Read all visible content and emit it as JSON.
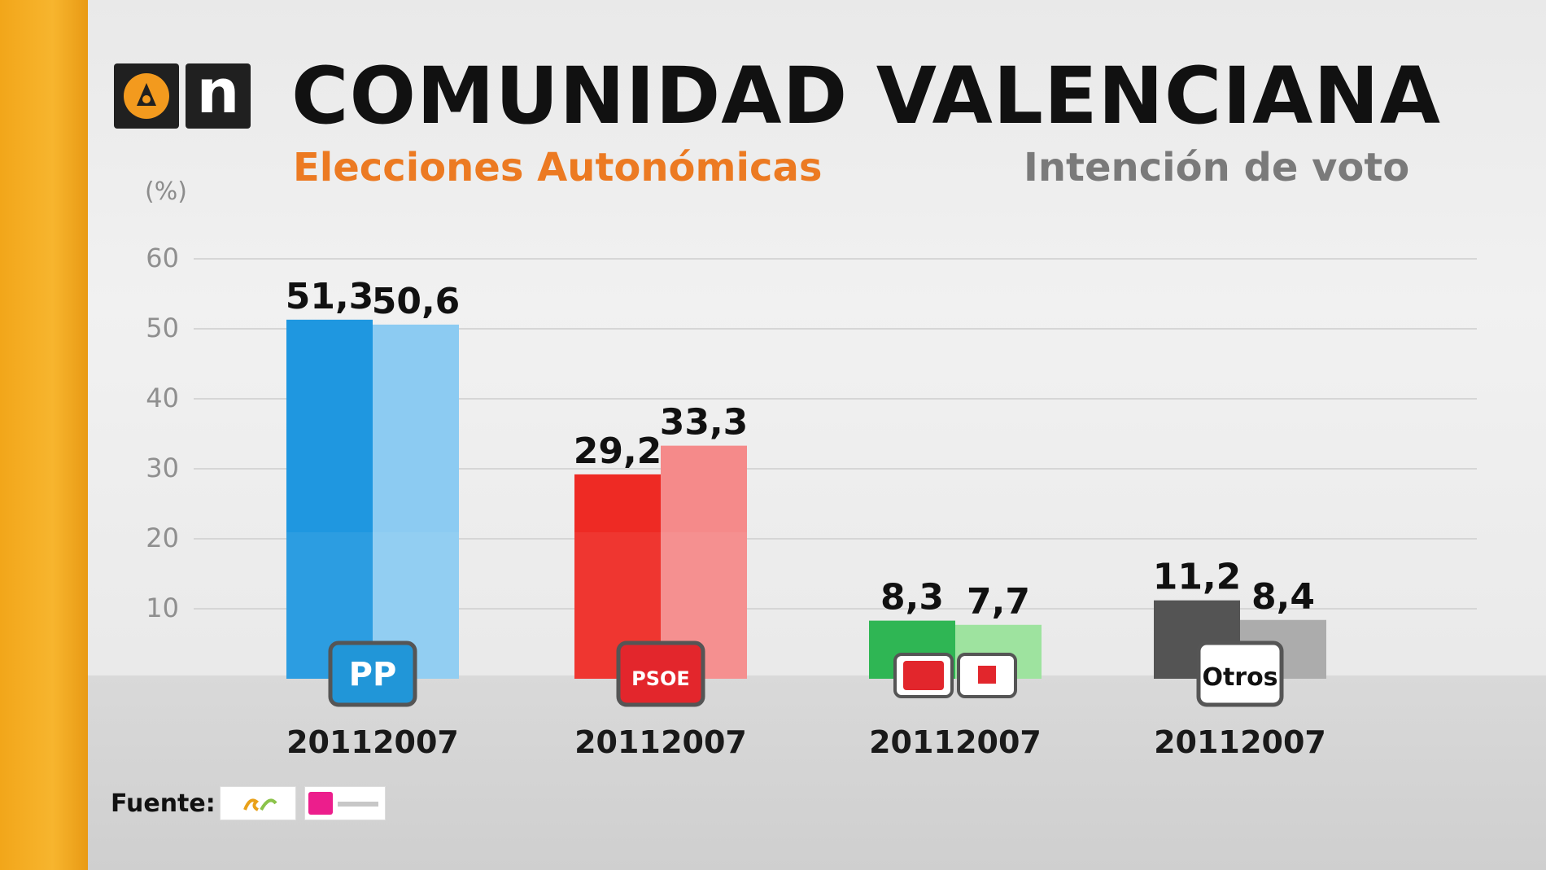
{
  "header": {
    "title": "COMUNIDAD VALENCIANA",
    "subtitle": "Elecciones Autonómicas",
    "subtitle_right": "Intención de voto",
    "logo_letter": "n"
  },
  "footer": {
    "source_label": "Fuente:"
  },
  "chart_data": {
    "type": "bar",
    "ylabel": "(%)",
    "ylim": [
      0,
      60
    ],
    "yticks": [
      10,
      20,
      30,
      40,
      50,
      60
    ],
    "grid": true,
    "series": [
      {
        "name": "2011",
        "values": [
          51.3,
          29.2,
          8.3,
          11.2
        ]
      },
      {
        "name": "2007",
        "values": [
          50.6,
          33.3,
          7.7,
          8.4
        ]
      }
    ],
    "value_labels": [
      [
        "51,3",
        "50,6"
      ],
      [
        "29,2",
        "33,3"
      ],
      [
        "8,3",
        "7,7"
      ],
      [
        "11,2",
        "8,4"
      ]
    ],
    "year_labels": [
      "2011",
      "2007"
    ],
    "groups": [
      {
        "key": "pp",
        "badge_text": "PP",
        "colors": [
          "#1f97e0",
          "#8ccbf2"
        ],
        "badge_color": "#2196d8"
      },
      {
        "key": "psoe",
        "badge_text": "PSOE",
        "colors": [
          "#ee2a24",
          "#f58a8a"
        ],
        "badge_color": "#e3262c"
      },
      {
        "key": "eu",
        "badge_text": "",
        "colors": [
          "#22b24a",
          "#98e29a"
        ],
        "badge_color": "#ffffff"
      },
      {
        "key": "otros",
        "badge_text": "Otros",
        "colors": [
          "#4a4a4a",
          "#a7a7a7"
        ],
        "badge_color": "#ffffff"
      }
    ]
  }
}
